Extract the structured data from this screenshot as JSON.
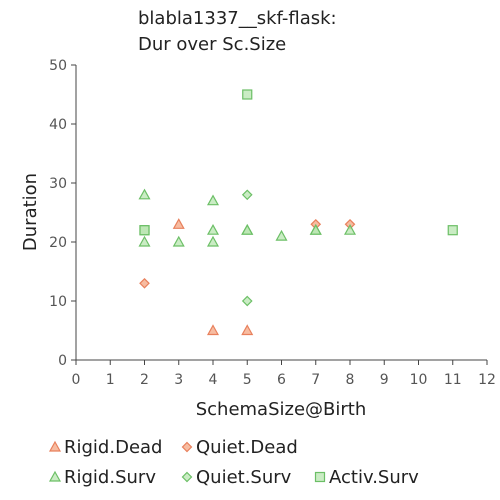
{
  "chart_data": {
    "type": "scatter",
    "title": [
      "blabla1337__skf-flask:",
      "Dur over Sc.Size"
    ],
    "xlabel": "SchemaSize@Birth",
    "ylabel": "Duration",
    "xlim": [
      0,
      12
    ],
    "ylim": [
      0,
      50
    ],
    "xticks": [
      0,
      1,
      2,
      3,
      4,
      5,
      6,
      7,
      8,
      9,
      10,
      11,
      12
    ],
    "yticks": [
      0,
      10,
      20,
      30,
      40,
      50
    ],
    "grid": false,
    "legend_position": "bottom",
    "series": [
      {
        "name": "Rigid.Dead",
        "marker": "triangle",
        "color": "#f4a582",
        "stroke": "#e8805c",
        "points": [
          [
            3,
            23
          ],
          [
            4,
            5
          ],
          [
            5,
            5
          ]
        ]
      },
      {
        "name": "Quiet.Dead",
        "marker": "diamond",
        "color": "#f4a582",
        "stroke": "#e8805c",
        "points": [
          [
            2,
            13
          ],
          [
            7,
            23
          ],
          [
            8,
            23
          ]
        ]
      },
      {
        "name": "Rigid.Surv",
        "marker": "triangle",
        "color": "#b8e6b0",
        "stroke": "#6cbf66",
        "points": [
          [
            2,
            28
          ],
          [
            2,
            20
          ],
          [
            3,
            20
          ],
          [
            4,
            27
          ],
          [
            4,
            22
          ],
          [
            4,
            20
          ],
          [
            5,
            22
          ],
          [
            5,
            22
          ],
          [
            6,
            21
          ],
          [
            7,
            22
          ],
          [
            7,
            22
          ],
          [
            8,
            22
          ]
        ]
      },
      {
        "name": "Quiet.Surv",
        "marker": "diamond",
        "color": "#b8e6b0",
        "stroke": "#6cbf66",
        "points": [
          [
            5,
            28
          ],
          [
            5,
            10
          ]
        ]
      },
      {
        "name": "Activ.Surv",
        "marker": "square",
        "color": "#b8e6b0",
        "stroke": "#6cbf66",
        "points": [
          [
            2,
            22
          ],
          [
            2,
            22
          ],
          [
            5,
            45
          ],
          [
            11,
            22
          ]
        ]
      }
    ]
  }
}
